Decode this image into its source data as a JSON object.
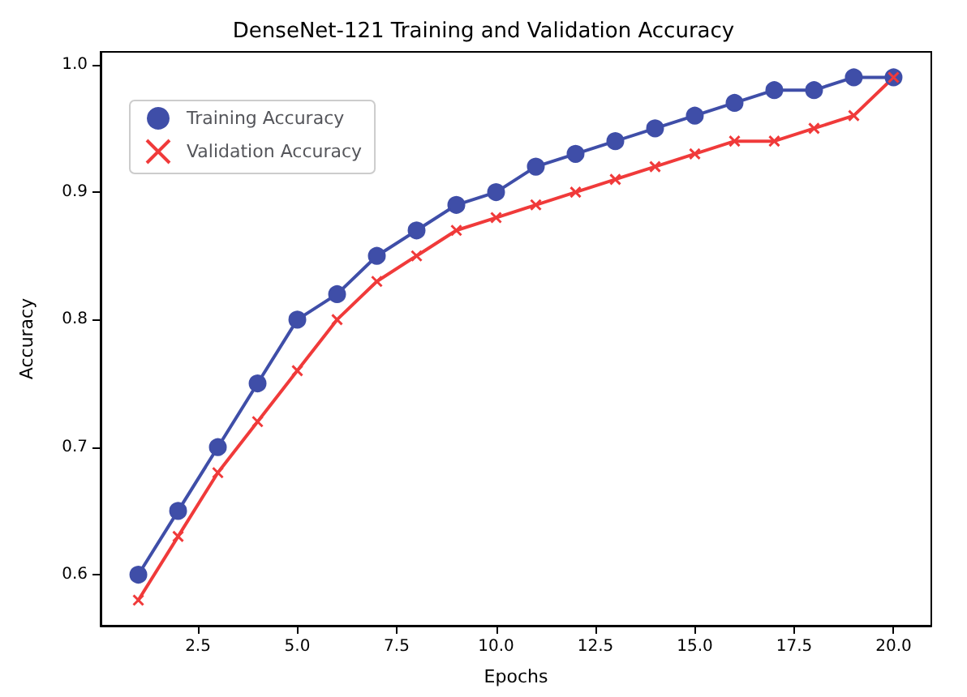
{
  "chart_data": {
    "type": "line",
    "title": "DenseNet-121 Training and Validation Accuracy",
    "xlabel": "Epochs",
    "ylabel": "Accuracy",
    "x": [
      1,
      2,
      3,
      4,
      5,
      6,
      7,
      8,
      9,
      10,
      11,
      12,
      13,
      14,
      15,
      16,
      17,
      18,
      19,
      20
    ],
    "series": [
      {
        "name": "Training Accuracy",
        "color": "#3f4ea8",
        "marker": "circle",
        "values": [
          0.6,
          0.65,
          0.7,
          0.75,
          0.8,
          0.82,
          0.85,
          0.87,
          0.89,
          0.9,
          0.92,
          0.93,
          0.94,
          0.95,
          0.96,
          0.97,
          0.98,
          0.98,
          0.99,
          0.99
        ]
      },
      {
        "name": "Validation Accuracy",
        "color": "#f03a3a",
        "marker": "cross",
        "values": [
          0.58,
          0.63,
          0.68,
          0.72,
          0.76,
          0.8,
          0.83,
          0.85,
          0.87,
          0.88,
          0.89,
          0.9,
          0.91,
          0.92,
          0.93,
          0.94,
          0.94,
          0.95,
          0.96,
          0.99
        ]
      }
    ],
    "xlim": [
      0.05,
      20.95
    ],
    "xticks": [
      2.5,
      {
        "value": 5,
        "label": "5.0"
      },
      7.5,
      {
        "value": 10,
        "label": "10.0"
      },
      12.5,
      {
        "value": 15,
        "label": "15.0"
      },
      17.5,
      {
        "value": 20,
        "label": "20.0"
      }
    ],
    "ylim": [
      0.56,
      1.01
    ],
    "yticks": [
      0.6,
      0.7,
      0.8,
      0.9,
      {
        "value": 1,
        "label": "1.0"
      }
    ],
    "grid": false,
    "legend": "top left",
    "line_style": "solid"
  }
}
